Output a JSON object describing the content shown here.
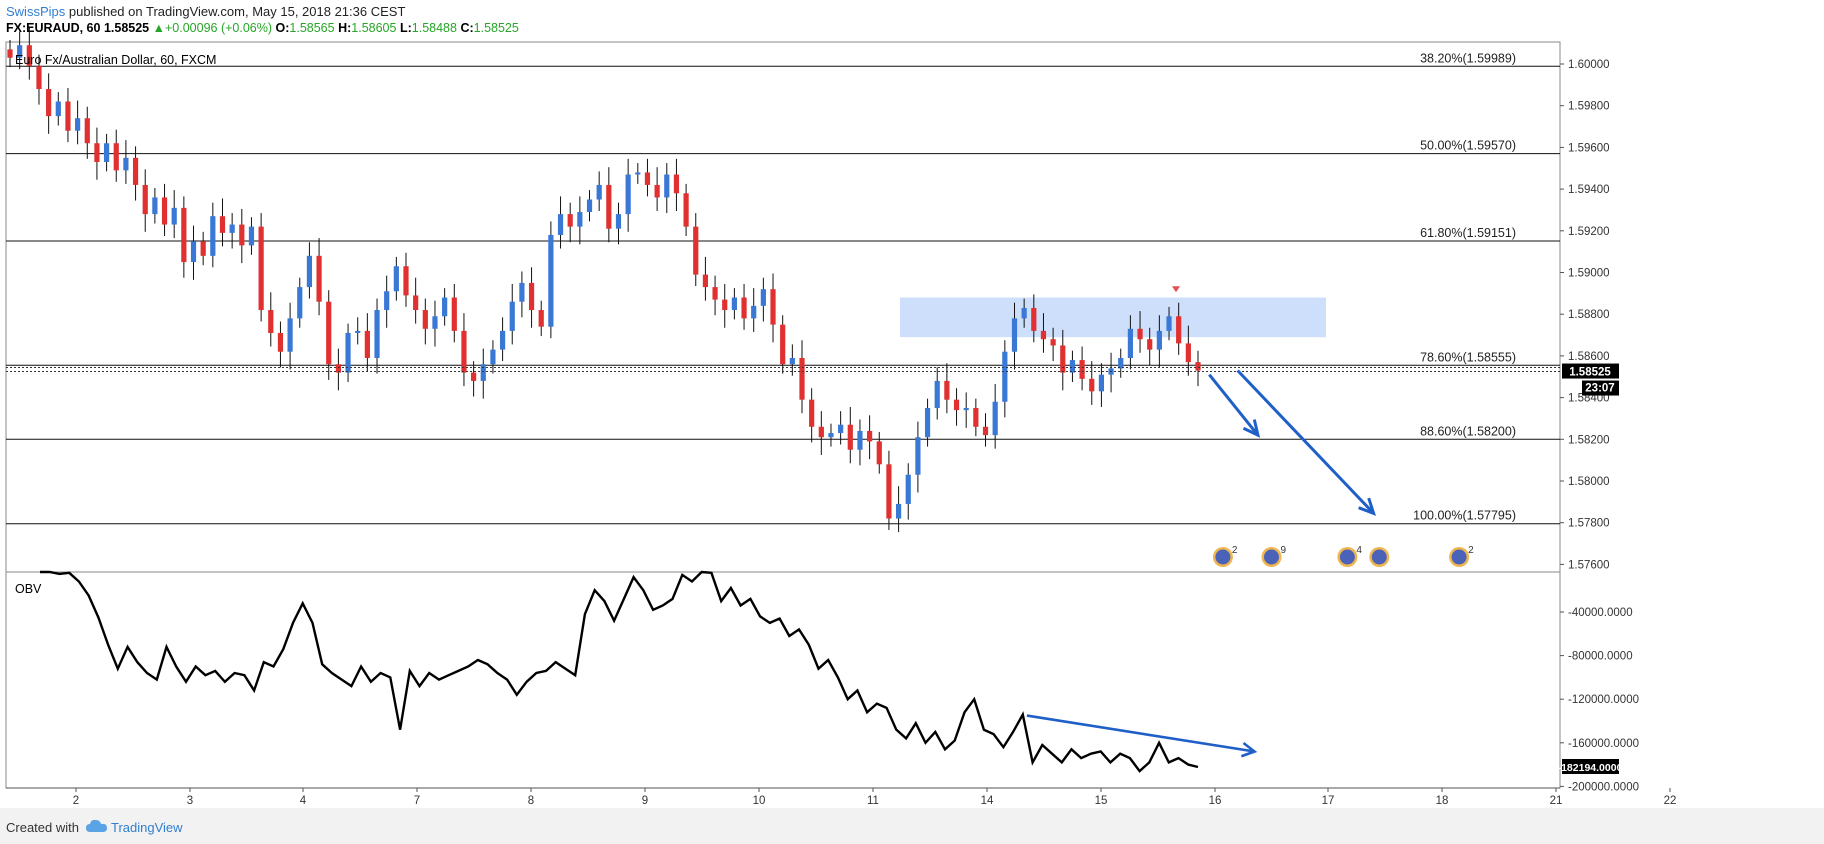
{
  "header": {
    "author": "SwissPips",
    "published_text": "published on TradingView.com, May 15, 2018 21:36 CEST",
    "symbol": "FX:EURAUD, 60",
    "last": "1.58525",
    "change": "+0.00096 (+0.06%)",
    "open_label": "O:",
    "open": "1.58565",
    "high_label": "H:",
    "high": "1.58605",
    "low_label": "L:",
    "low": "1.58488",
    "close_label": "C:",
    "close": "1.58525"
  },
  "footer": {
    "created_with": "Created with",
    "brand": "TradingView"
  },
  "colors": {
    "up": "#3a78d6",
    "down": "#e03030",
    "accent": "#1f5fc8",
    "zone": "#c9dcfb",
    "price_tag": "#000000"
  },
  "chart_data": [
    {
      "type": "candlestick",
      "title": "Euro Fx/Australian Dollar, 60, FXCM",
      "ylim": [
        1.5755,
        1.6015
      ],
      "y_ticks": [
        "1.60000",
        "1.59800",
        "1.59600",
        "1.59400",
        "1.59200",
        "1.59000",
        "1.58800",
        "1.58600",
        "1.58400",
        "1.58200",
        "1.58000",
        "1.57800",
        "1.57600"
      ],
      "x_ticks": [
        "2",
        "3",
        "4",
        "7",
        "8",
        "9",
        "10",
        "11",
        "14",
        "15",
        "16",
        "17",
        "18",
        "21",
        "22"
      ],
      "price_label": "1.58525",
      "countdown_label": "23:07",
      "fib_levels": [
        {
          "label": "38.20%(1.59989)",
          "value": 1.59989
        },
        {
          "label": "50.00%(1.59570)",
          "value": 1.5957
        },
        {
          "label": "61.80%(1.59151)",
          "value": 1.59151
        },
        {
          "label": "78.60%(1.58555)",
          "value": 1.58555
        },
        {
          "label": "88.60%(1.58200)",
          "value": 1.582
        },
        {
          "label": "100.00%(1.57795)",
          "value": 1.57795
        }
      ],
      "resistance_zone": [
        1.5869,
        1.5888
      ],
      "price_path": [
        1.6003,
        1.6009,
        1.5999,
        1.5988,
        1.5975,
        1.5982,
        1.5968,
        1.5974,
        1.5962,
        1.5953,
        1.5962,
        1.5949,
        1.5955,
        1.5942,
        1.5928,
        1.5936,
        1.5923,
        1.5931,
        1.5905,
        1.5915,
        1.5908,
        1.5927,
        1.5919,
        1.5923,
        1.5913,
        1.5922,
        1.5882,
        1.5871,
        1.5862,
        1.5878,
        1.5893,
        1.5908,
        1.5886,
        1.5856,
        1.5852,
        1.5871,
        1.5872,
        1.5859,
        1.5882,
        1.5891,
        1.5903,
        1.5889,
        1.5882,
        1.5873,
        1.5879,
        1.5888,
        1.5872,
        1.5852,
        1.5848,
        1.5856,
        1.5863,
        1.5872,
        1.5886,
        1.5895,
        1.5882,
        1.5874,
        1.5918,
        1.5928,
        1.5922,
        1.5929,
        1.5935,
        1.5942,
        1.5921,
        1.5928,
        1.5947,
        1.5948,
        1.5942,
        1.5936,
        1.5947,
        1.5938,
        1.5922,
        1.5899,
        1.5893,
        1.5887,
        1.5882,
        1.5888,
        1.5878,
        1.5884,
        1.5892,
        1.5875,
        1.5856,
        1.5859,
        1.5839,
        1.5826,
        1.5821,
        1.5823,
        1.5827,
        1.5815,
        1.5824,
        1.5819,
        1.5808,
        1.5782,
        1.5789,
        1.5803,
        1.5821,
        1.5835,
        1.5848,
        1.5839,
        1.5834,
        1.5835,
        1.5826,
        1.5822,
        1.5838,
        1.5862,
        1.5878,
        1.5883,
        1.5872,
        1.5868,
        1.5865,
        1.5852,
        1.5858,
        1.5849,
        1.5843,
        1.5851,
        1.5854,
        1.5859,
        1.5873,
        1.5868,
        1.5863,
        1.5872,
        1.5879,
        1.5866,
        1.5857,
        1.5853
      ],
      "forecast_arrows": [
        {
          "from": [
            1.5851,
            15.95
          ],
          "to": [
            1.5822,
            16.38
          ]
        },
        {
          "from": [
            1.5853,
            16.2
          ],
          "to": [
            1.57845,
            17.4
          ]
        }
      ],
      "event_badges": [
        {
          "day": 16.07,
          "count": "2"
        },
        {
          "day": 16.5,
          "count": "9"
        },
        {
          "day": 17.17,
          "count": "4"
        },
        {
          "day": 17.45,
          "count": ""
        },
        {
          "day": 18.45,
          "count": "2"
        }
      ]
    },
    {
      "type": "line",
      "title": "OBV",
      "ylim": [
        -200000,
        0
      ],
      "y_ticks": [
        "-40000.0000",
        "-80000.0000",
        "-120000.0000",
        "-160000.0000",
        "-200000.0000"
      ],
      "current_label": "-182194.0000",
      "obv_path": [
        1000,
        -2000,
        -5000,
        -4000,
        -12000,
        -25000,
        -45000,
        -70000,
        -92000,
        -72000,
        -86000,
        -96000,
        -102000,
        -72000,
        -90000,
        -104000,
        -90000,
        -98000,
        -94000,
        -104000,
        -96000,
        -98000,
        -112000,
        -86000,
        -90000,
        -74000,
        -50000,
        -32000,
        -50000,
        -88000,
        -96000,
        -102000,
        -108000,
        -90000,
        -104000,
        -96000,
        -100000,
        -148000,
        -94000,
        -108000,
        -96000,
        -102000,
        -98000,
        -94000,
        -90000,
        -84000,
        -88000,
        -96000,
        -102000,
        -116000,
        -104000,
        -96000,
        -94000,
        -86000,
        -92000,
        -98000,
        -42000,
        -20000,
        -30000,
        -48000,
        -28000,
        -8000,
        -20000,
        -38000,
        -34000,
        -28000,
        -6000,
        -12000,
        -2000,
        -4000,
        -30000,
        -18000,
        -34000,
        -28000,
        -44000,
        -50000,
        -46000,
        -62000,
        -56000,
        -70000,
        -92000,
        -84000,
        -100000,
        -120000,
        -112000,
        -132000,
        -124000,
        -128000,
        -148000,
        -156000,
        -142000,
        -160000,
        -150000,
        -166000,
        -158000,
        -132000,
        -120000,
        -148000,
        -152000,
        -164000,
        -150000,
        -134000,
        -178000,
        -162000,
        -170000,
        -178000,
        -166000,
        -174000,
        -170000,
        -168000,
        -178000,
        -170000,
        -174000,
        -186000,
        -178000,
        -160000,
        -178000,
        -174000,
        -180000,
        -182194
      ],
      "divergence_line": {
        "from": [
          -135000,
          14.35
        ],
        "to": [
          -168000,
          16.35
        ]
      }
    }
  ]
}
